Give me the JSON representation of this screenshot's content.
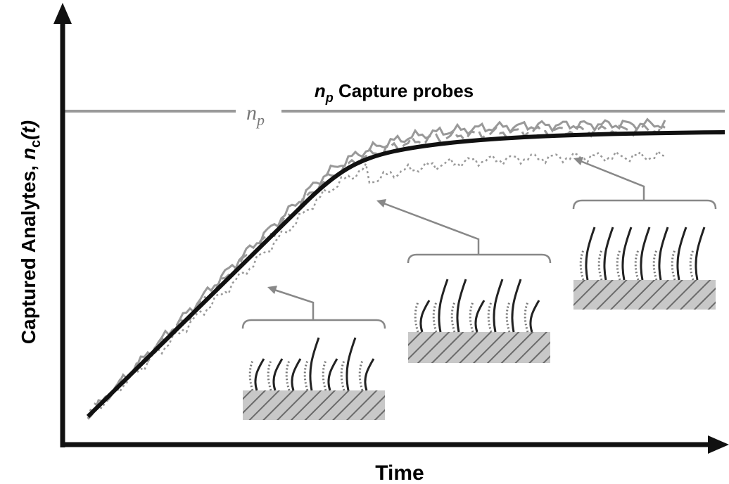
{
  "title": {
    "symbol": "n",
    "subscript": "p",
    "text": "Capture probes"
  },
  "line_label": {
    "symbol": "n",
    "subscript": "p"
  },
  "y_axis": {
    "text": "Captured Analytes,",
    "symbol": "n",
    "subscript": "c",
    "argument": "(t)"
  },
  "x_axis": "Time"
}
